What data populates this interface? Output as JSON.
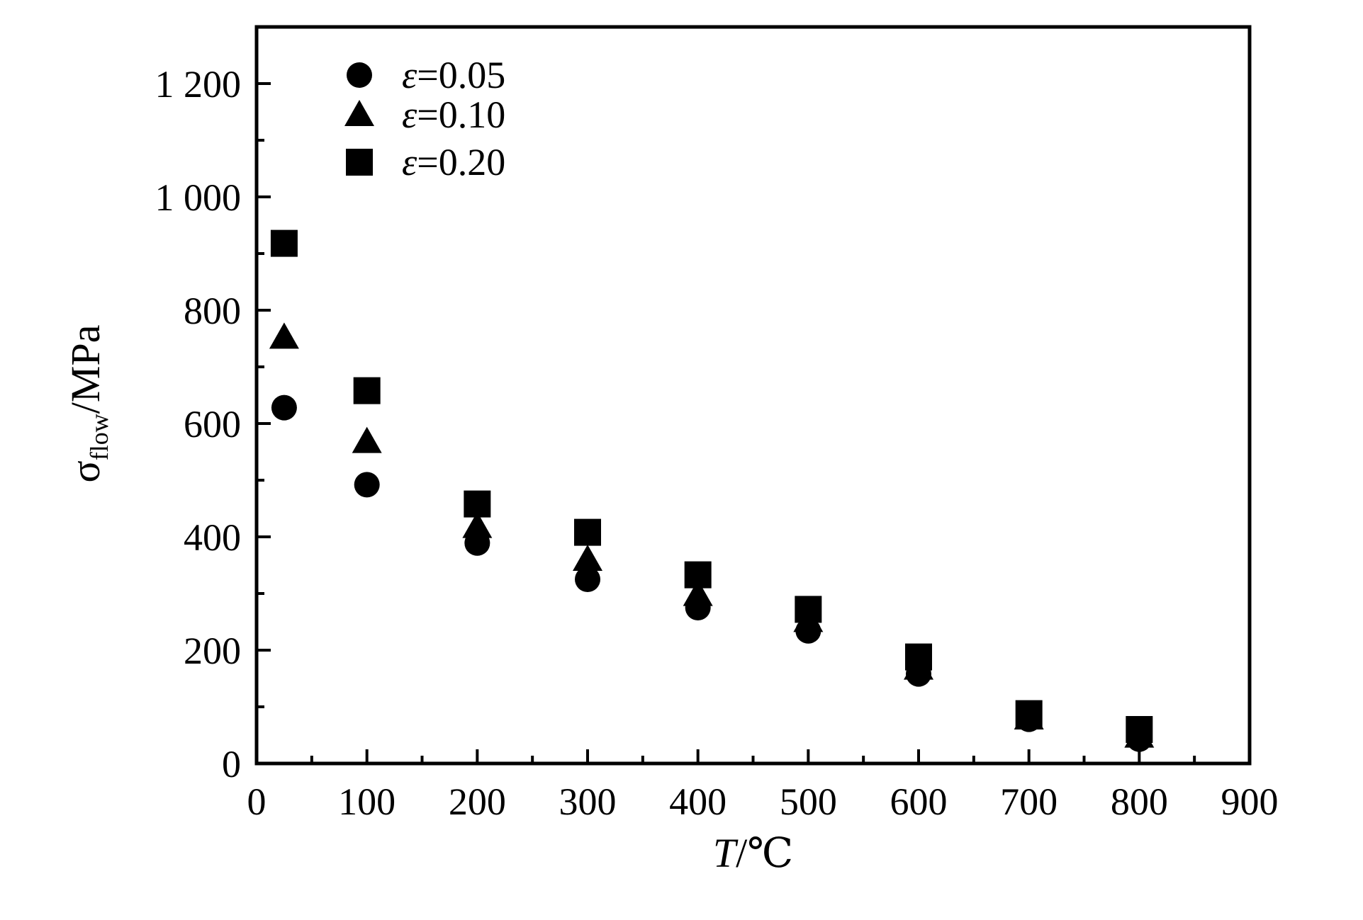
{
  "chart_data": {
    "type": "scatter",
    "title": "",
    "xlabel": {
      "symbol": "T",
      "unit": "/℃"
    },
    "ylabel": {
      "symbol": "σ",
      "subscript": "flow",
      "unit": "/MPa"
    },
    "xlim": [
      0,
      900
    ],
    "ylim": [
      0,
      1300
    ],
    "x_ticks": [
      0,
      100,
      200,
      300,
      400,
      500,
      600,
      700,
      800,
      900
    ],
    "x_tick_labels": [
      "0",
      "100",
      "200",
      "300",
      "400",
      "500",
      "600",
      "700",
      "800",
      "900"
    ],
    "y_ticks": [
      0,
      200,
      400,
      600,
      800,
      1000,
      1200
    ],
    "y_tick_labels": [
      "0",
      "200",
      "400",
      "600",
      "800",
      "1 000",
      "1 200"
    ],
    "grid": false,
    "legend_position": "top-left",
    "series": [
      {
        "name": "ε=0.05",
        "name_symbol": "ε",
        "name_value": "=0.05",
        "marker": "circle",
        "color": "#000000",
        "x": [
          25,
          100,
          200,
          300,
          400,
          500,
          600,
          700,
          800
        ],
        "y": [
          628,
          492,
          389,
          325,
          275,
          234,
          158,
          78,
          43
        ]
      },
      {
        "name": "ε=0.10",
        "name_symbol": "ε",
        "name_value": "=0.10",
        "marker": "triangle",
        "color": "#000000",
        "x": [
          25,
          100,
          200,
          300,
          400,
          500,
          600,
          700,
          800
        ],
        "y": [
          752,
          568,
          418,
          360,
          298,
          252,
          168,
          80,
          48
        ]
      },
      {
        "name": "ε=0.20",
        "name_symbol": "ε",
        "name_value": "=0.20",
        "marker": "square",
        "color": "#000000",
        "x": [
          25,
          100,
          200,
          300,
          400,
          500,
          600,
          700,
          800
        ],
        "y": [
          918,
          658,
          458,
          408,
          333,
          272,
          188,
          88,
          60
        ]
      }
    ]
  }
}
